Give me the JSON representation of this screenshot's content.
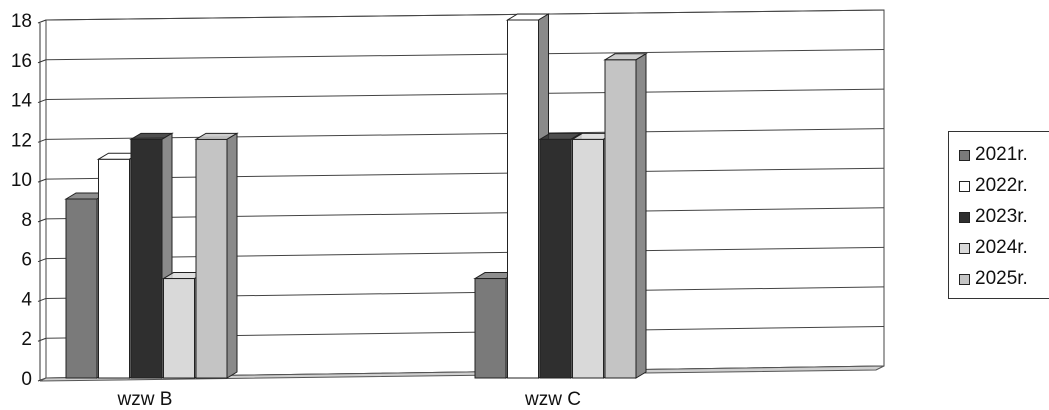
{
  "chart_data": {
    "type": "bar",
    "categories": [
      "wzw B",
      "wzw C"
    ],
    "series": [
      {
        "name": "2021r.",
        "values": [
          9,
          5
        ],
        "color": "#7a7a7a"
      },
      {
        "name": "2022r.",
        "values": [
          11,
          18
        ],
        "color": "#ffffff"
      },
      {
        "name": "2023r.",
        "values": [
          12,
          12
        ],
        "color": "#2f2f2f"
      },
      {
        "name": "2024r.",
        "values": [
          5,
          12
        ],
        "color": "#d9d9d9"
      },
      {
        "name": "2025r.",
        "values": [
          12,
          16
        ],
        "color": "#c4c4c4"
      }
    ],
    "yticks": [
      "0",
      "2",
      "4",
      "6",
      "8",
      "10",
      "12",
      "14",
      "16",
      "18"
    ],
    "ylim": [
      0,
      18
    ],
    "grid": true,
    "legend_position": "right",
    "title": "",
    "xlabel": "",
    "ylabel": ""
  }
}
